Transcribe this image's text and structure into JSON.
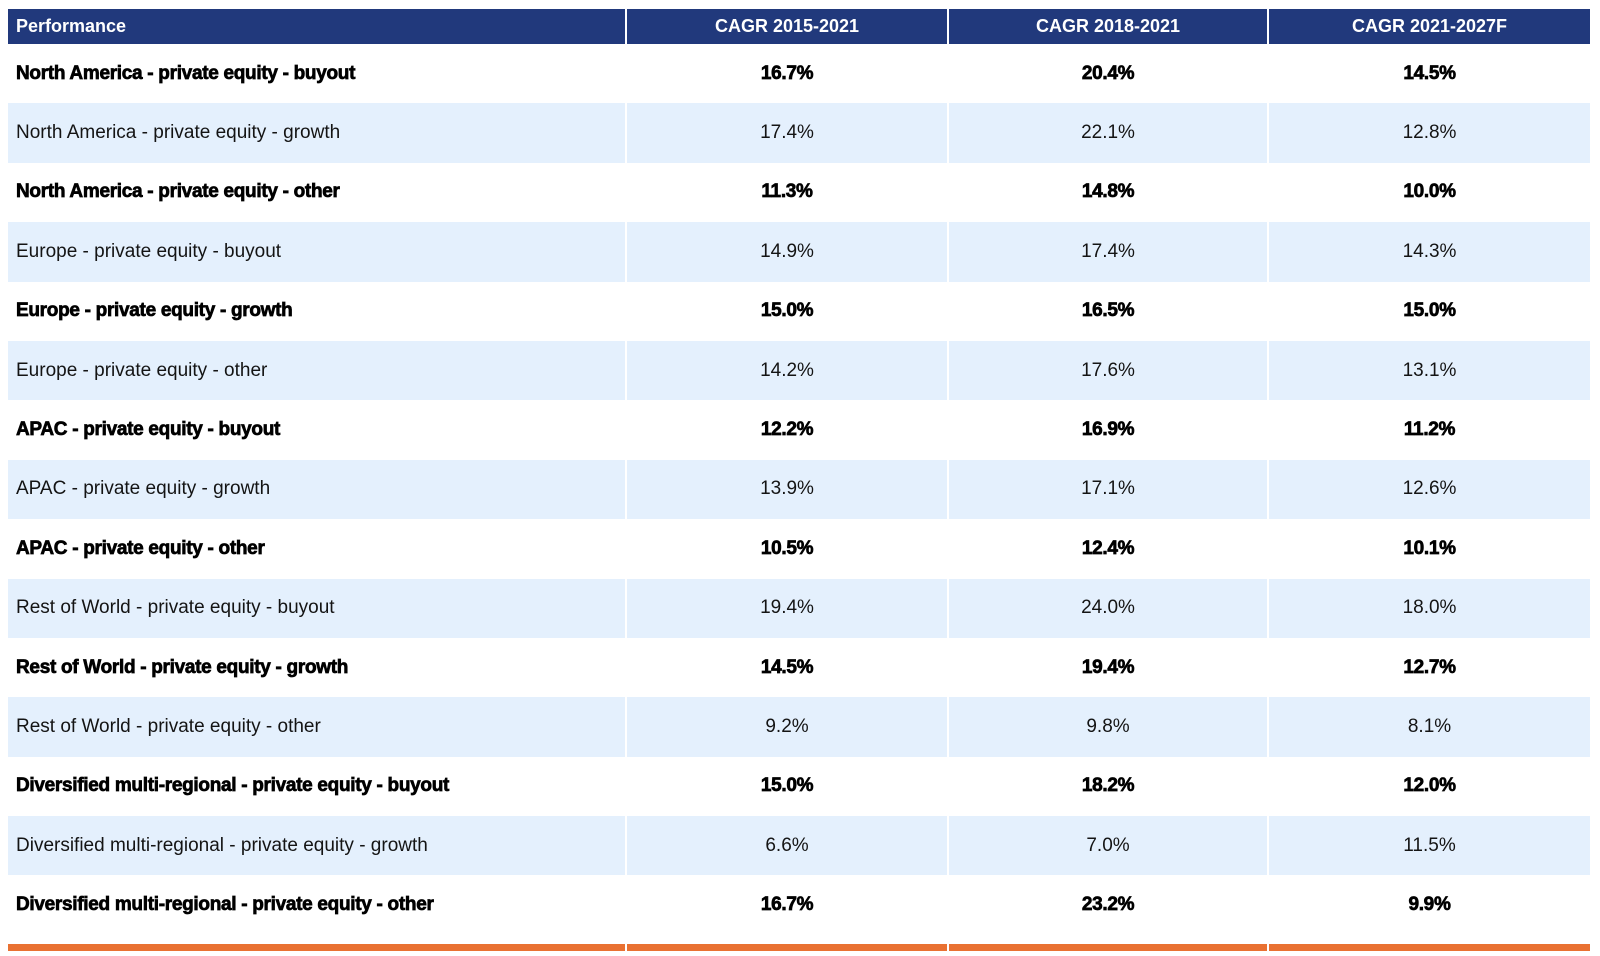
{
  "colors": {
    "header_bg": "#21397C",
    "header_text": "#FFFFFF",
    "alt_row_bg": "#E4F0FD",
    "body_text": "#000000",
    "accent_bar": "#E97132"
  },
  "chart_data": {
    "type": "table",
    "title": "Performance",
    "columns": [
      "Performance",
      "CAGR 2015-2021",
      "CAGR 2018-2021",
      "CAGR 2021-2027F"
    ],
    "rows": [
      {
        "label": "North America - private equity - buyout",
        "values": [
          "16.7%",
          "20.4%",
          "14.5%"
        ],
        "bold": true
      },
      {
        "label": "North America - private equity - growth",
        "values": [
          "17.4%",
          "22.1%",
          "12.8%"
        ],
        "bold": false
      },
      {
        "label": "North America - private equity - other",
        "values": [
          "11.3%",
          "14.8%",
          "10.0%"
        ],
        "bold": true
      },
      {
        "label": "Europe - private equity - buyout",
        "values": [
          "14.9%",
          "17.4%",
          "14.3%"
        ],
        "bold": false
      },
      {
        "label": "Europe - private equity - growth",
        "values": [
          "15.0%",
          "16.5%",
          "15.0%"
        ],
        "bold": true
      },
      {
        "label": "Europe - private equity - other",
        "values": [
          "14.2%",
          "17.6%",
          "13.1%"
        ],
        "bold": false
      },
      {
        "label": "APAC - private equity - buyout",
        "values": [
          "12.2%",
          "16.9%",
          "11.2%"
        ],
        "bold": true
      },
      {
        "label": "APAC - private equity - growth",
        "values": [
          "13.9%",
          "17.1%",
          "12.6%"
        ],
        "bold": false
      },
      {
        "label": "APAC - private equity - other",
        "values": [
          "10.5%",
          "12.4%",
          "10.1%"
        ],
        "bold": true
      },
      {
        "label": "Rest of World - private equity - buyout",
        "values": [
          "19.4%",
          "24.0%",
          "18.0%"
        ],
        "bold": false
      },
      {
        "label": "Rest of World - private equity - growth",
        "values": [
          "14.5%",
          "19.4%",
          "12.7%"
        ],
        "bold": true
      },
      {
        "label": "Rest of World - private equity - other",
        "values": [
          "9.2%",
          "9.8%",
          "8.1%"
        ],
        "bold": false
      },
      {
        "label": "Diversified multi-regional - private equity - buyout",
        "values": [
          "15.0%",
          "18.2%",
          "12.0%"
        ],
        "bold": true
      },
      {
        "label": "Diversified multi-regional - private equity - growth",
        "values": [
          "6.6%",
          "7.0%",
          "11.5%"
        ],
        "bold": false
      },
      {
        "label": "Diversified multi-regional - private equity - other",
        "values": [
          "16.7%",
          "23.2%",
          "9.9%"
        ],
        "bold": true
      }
    ]
  }
}
